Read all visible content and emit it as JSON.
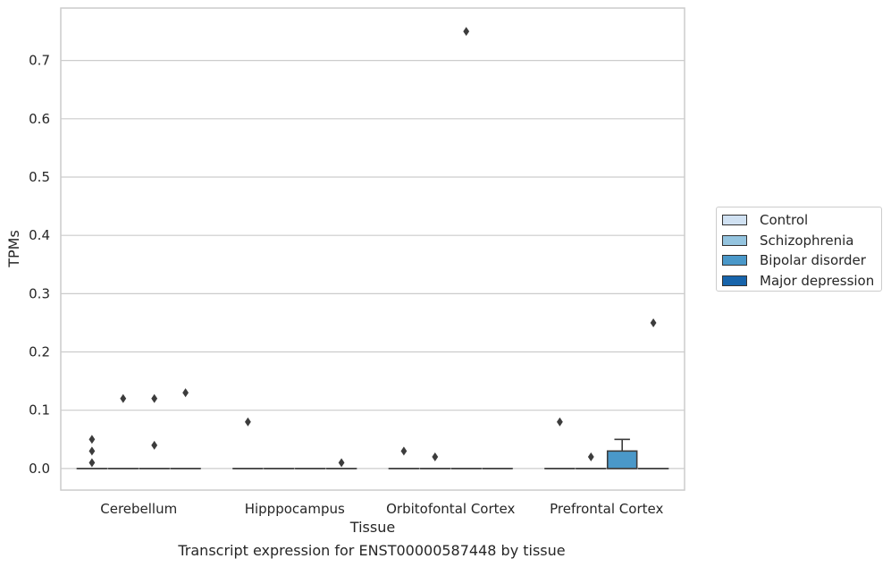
{
  "chart_data": {
    "type": "box",
    "title": "",
    "caption": "Transcript expression for ENST00000587448 by tissue",
    "xlabel": "Tissue",
    "ylabel": "TPMs",
    "ylim": [
      -0.037,
      0.79
    ],
    "yticks": [
      "0.0",
      "0.1",
      "0.2",
      "0.3",
      "0.4",
      "0.5",
      "0.6",
      "0.7"
    ],
    "ytick_values": [
      0,
      0.1,
      0.2,
      0.3,
      0.4,
      0.5,
      0.6,
      0.7
    ],
    "grid": true,
    "legend_placement": "center-right",
    "categories": [
      "Cerebellum",
      "Hipppocampus",
      "Orbitofontal Cortex",
      "Prefrontal Cortex"
    ],
    "series": [
      {
        "name": "Control",
        "color": "#d0e1f2",
        "boxes": [
          {
            "q1": 0,
            "median": 0,
            "q3": 0,
            "whisker_low": 0,
            "whisker_high": 0,
            "outliers": [
              0.05,
              0.03,
              0.01
            ]
          },
          {
            "q1": 0,
            "median": 0,
            "q3": 0,
            "whisker_low": 0,
            "whisker_high": 0,
            "outliers": [
              0.08
            ]
          },
          {
            "q1": 0,
            "median": 0,
            "q3": 0,
            "whisker_low": 0,
            "whisker_high": 0,
            "outliers": [
              0.03
            ]
          },
          {
            "q1": 0,
            "median": 0,
            "q3": 0,
            "whisker_low": 0,
            "whisker_high": 0,
            "outliers": [
              0.08
            ]
          }
        ]
      },
      {
        "name": "Schizophrenia",
        "color": "#94c4df",
        "boxes": [
          {
            "q1": 0,
            "median": 0,
            "q3": 0,
            "whisker_low": 0,
            "whisker_high": 0,
            "outliers": [
              0.12
            ]
          },
          {
            "q1": 0,
            "median": 0,
            "q3": 0,
            "whisker_low": 0,
            "whisker_high": 0,
            "outliers": []
          },
          {
            "q1": 0,
            "median": 0,
            "q3": 0,
            "whisker_low": 0,
            "whisker_high": 0,
            "outliers": [
              0.02
            ]
          },
          {
            "q1": 0,
            "median": 0,
            "q3": 0,
            "whisker_low": 0,
            "whisker_high": 0,
            "outliers": [
              0.02
            ]
          }
        ]
      },
      {
        "name": "Bipolar disorder",
        "color": "#4a98c9",
        "boxes": [
          {
            "q1": 0,
            "median": 0,
            "q3": 0,
            "whisker_low": 0,
            "whisker_high": 0,
            "outliers": [
              0.12,
              0.04
            ]
          },
          {
            "q1": 0,
            "median": 0,
            "q3": 0,
            "whisker_low": 0,
            "whisker_high": 0,
            "outliers": []
          },
          {
            "q1": 0,
            "median": 0,
            "q3": 0,
            "whisker_low": 0,
            "whisker_high": 0,
            "outliers": [
              0.75
            ]
          },
          {
            "q1": 0,
            "median": 0,
            "q3": 0.03,
            "whisker_low": 0,
            "whisker_high": 0.05,
            "outliers": []
          }
        ]
      },
      {
        "name": "Major depression",
        "color": "#1764ab",
        "boxes": [
          {
            "q1": 0,
            "median": 0,
            "q3": 0,
            "whisker_low": 0,
            "whisker_high": 0,
            "outliers": [
              0.13
            ]
          },
          {
            "q1": 0,
            "median": 0,
            "q3": 0,
            "whisker_low": 0,
            "whisker_high": 0,
            "outliers": [
              0.01
            ]
          },
          {
            "q1": 0,
            "median": 0,
            "q3": 0,
            "whisker_low": 0,
            "whisker_high": 0,
            "outliers": []
          },
          {
            "q1": 0,
            "median": 0,
            "q3": 0,
            "whisker_low": 0,
            "whisker_high": 0,
            "outliers": [
              0.25
            ]
          }
        ]
      }
    ]
  },
  "colors": {
    "grid": "#cccccc",
    "box_edge": "#3c3c3c",
    "outlier": "#3c3c3c",
    "spine": "#cccccc"
  }
}
